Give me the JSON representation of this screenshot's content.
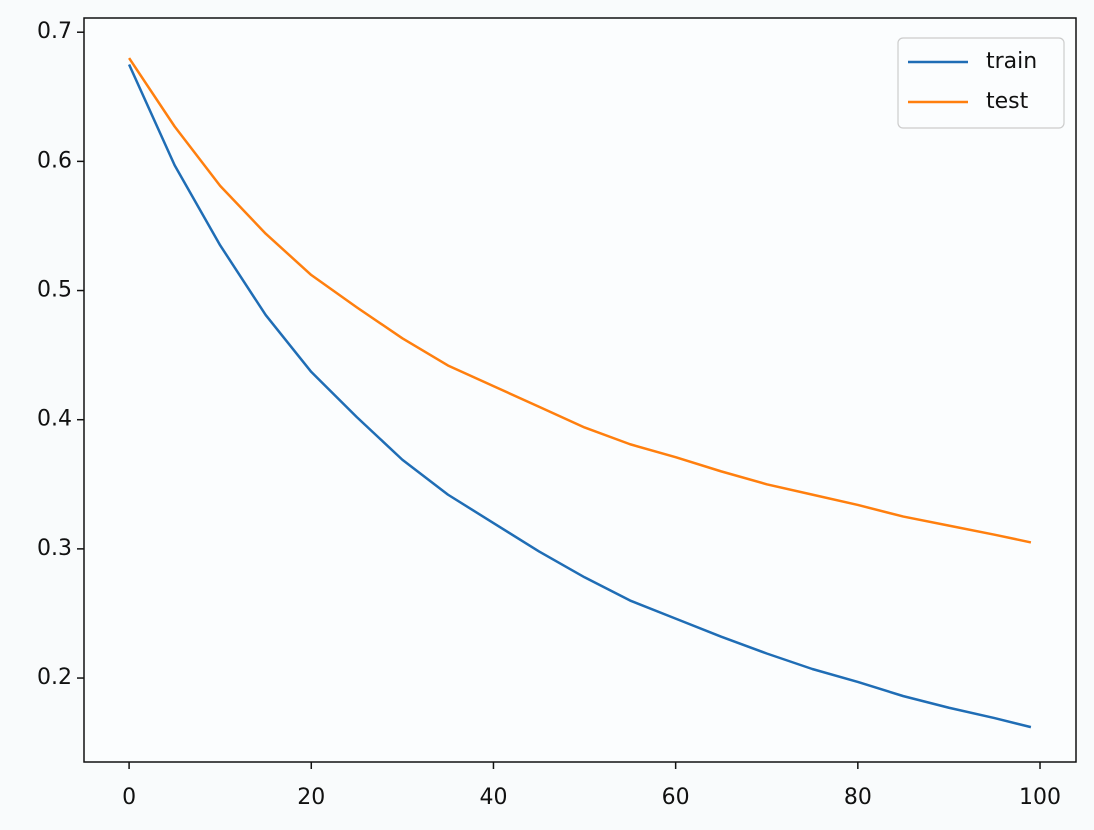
{
  "chart_data": {
    "type": "line",
    "x": [
      0,
      5,
      10,
      15,
      20,
      25,
      30,
      35,
      40,
      45,
      50,
      55,
      60,
      65,
      70,
      75,
      80,
      85,
      90,
      95,
      99
    ],
    "series": [
      {
        "name": "train",
        "color": "#1f6db5",
        "values": [
          0.675,
          0.597,
          0.535,
          0.481,
          0.437,
          0.402,
          0.369,
          0.342,
          0.32,
          0.298,
          0.278,
          0.26,
          0.246,
          0.232,
          0.219,
          0.207,
          0.197,
          0.186,
          0.177,
          0.169,
          0.162
        ]
      },
      {
        "name": "test",
        "color": "#ff7f0e",
        "values": [
          0.68,
          0.627,
          0.581,
          0.544,
          0.512,
          0.487,
          0.463,
          0.442,
          0.426,
          0.41,
          0.394,
          0.381,
          0.371,
          0.36,
          0.35,
          0.342,
          0.334,
          0.325,
          0.318,
          0.311,
          0.305
        ]
      }
    ],
    "xlim": [
      -4.95,
      103.95
    ],
    "ylim": [
      0.135,
      0.711
    ],
    "xticks": [
      0,
      20,
      40,
      60,
      80,
      100
    ],
    "yticks": [
      0.2,
      0.3,
      0.4,
      0.5,
      0.6,
      0.7
    ],
    "grid": false,
    "legend": "upper right"
  }
}
